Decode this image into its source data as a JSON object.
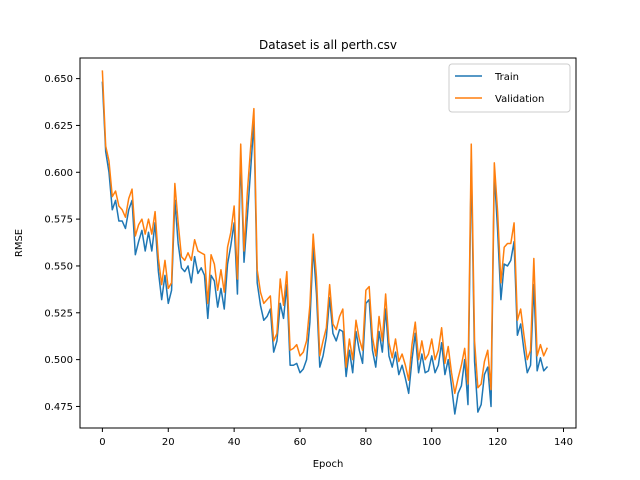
{
  "chart_data": {
    "type": "line",
    "title": "Dataset is all perth.csv",
    "xlabel": "Epoch",
    "ylabel": "RMSE",
    "xlim": [
      -6.8,
      143.8
    ],
    "ylim": [
      0.4635,
      0.661
    ],
    "xticks": [
      0,
      20,
      40,
      60,
      80,
      100,
      120,
      140
    ],
    "yticks": [
      0.475,
      0.5,
      0.525,
      0.55,
      0.575,
      0.6,
      0.625,
      0.65
    ],
    "ytick_labels": [
      "0.475",
      "0.500",
      "0.525",
      "0.550",
      "0.575",
      "0.600",
      "0.625",
      "0.650"
    ],
    "grid": false,
    "legend_position": "top-right",
    "series": [
      {
        "name": "Train",
        "color": "#1f77b4",
        "values": [
          0.648,
          0.611,
          0.6,
          0.58,
          0.585,
          0.574,
          0.574,
          0.57,
          0.58,
          0.585,
          0.556,
          0.563,
          0.569,
          0.558,
          0.568,
          0.558,
          0.573,
          0.547,
          0.532,
          0.545,
          0.53,
          0.537,
          0.585,
          0.562,
          0.549,
          0.547,
          0.55,
          0.541,
          0.555,
          0.546,
          0.549,
          0.545,
          0.522,
          0.545,
          0.542,
          0.528,
          0.538,
          0.527,
          0.551,
          0.561,
          0.573,
          0.535,
          0.608,
          0.552,
          0.576,
          0.601,
          0.627,
          0.541,
          0.529,
          0.521,
          0.523,
          0.527,
          0.504,
          0.51,
          0.53,
          0.522,
          0.54,
          0.497,
          0.497,
          0.498,
          0.493,
          0.495,
          0.5,
          0.52,
          0.56,
          0.535,
          0.496,
          0.502,
          0.512,
          0.533,
          0.514,
          0.51,
          0.516,
          0.515,
          0.491,
          0.505,
          0.493,
          0.515,
          0.505,
          0.498,
          0.53,
          0.532,
          0.505,
          0.496,
          0.515,
          0.504,
          0.527,
          0.502,
          0.496,
          0.504,
          0.492,
          0.497,
          0.49,
          0.482,
          0.5,
          0.514,
          0.493,
          0.503,
          0.493,
          0.494,
          0.502,
          0.493,
          0.497,
          0.509,
          0.492,
          0.5,
          0.486,
          0.471,
          0.482,
          0.486,
          0.5,
          0.476,
          0.607,
          0.499,
          0.472,
          0.476,
          0.492,
          0.496,
          0.475,
          0.6,
          0.569,
          0.532,
          0.551,
          0.55,
          0.553,
          0.563,
          0.513,
          0.519,
          0.505,
          0.493,
          0.497,
          0.54,
          0.494,
          0.501,
          0.494,
          0.496
        ]
      },
      {
        "name": "Validation",
        "color": "#ff7f0e",
        "values": [
          0.654,
          0.614,
          0.606,
          0.587,
          0.59,
          0.582,
          0.58,
          0.576,
          0.586,
          0.591,
          0.566,
          0.572,
          0.575,
          0.567,
          0.575,
          0.567,
          0.579,
          0.554,
          0.54,
          0.553,
          0.538,
          0.541,
          0.594,
          0.573,
          0.555,
          0.553,
          0.557,
          0.553,
          0.564,
          0.558,
          0.557,
          0.556,
          0.53,
          0.556,
          0.551,
          0.537,
          0.548,
          0.536,
          0.56,
          0.568,
          0.582,
          0.543,
          0.615,
          0.558,
          0.589,
          0.613,
          0.634,
          0.548,
          0.536,
          0.53,
          0.532,
          0.534,
          0.51,
          0.514,
          0.543,
          0.529,
          0.547,
          0.505,
          0.506,
          0.508,
          0.502,
          0.504,
          0.51,
          0.529,
          0.567,
          0.544,
          0.502,
          0.51,
          0.517,
          0.54,
          0.519,
          0.516,
          0.523,
          0.527,
          0.496,
          0.511,
          0.5,
          0.521,
          0.511,
          0.505,
          0.537,
          0.539,
          0.512,
          0.502,
          0.523,
          0.51,
          0.535,
          0.509,
          0.501,
          0.511,
          0.499,
          0.503,
          0.497,
          0.489,
          0.508,
          0.52,
          0.5,
          0.51,
          0.5,
          0.503,
          0.511,
          0.5,
          0.505,
          0.517,
          0.498,
          0.507,
          0.493,
          0.482,
          0.49,
          0.497,
          0.506,
          0.487,
          0.615,
          0.51,
          0.485,
          0.487,
          0.499,
          0.505,
          0.484,
          0.605,
          0.579,
          0.541,
          0.56,
          0.562,
          0.562,
          0.573,
          0.521,
          0.527,
          0.513,
          0.5,
          0.505,
          0.554,
          0.502,
          0.508,
          0.502,
          0.506
        ]
      }
    ]
  }
}
